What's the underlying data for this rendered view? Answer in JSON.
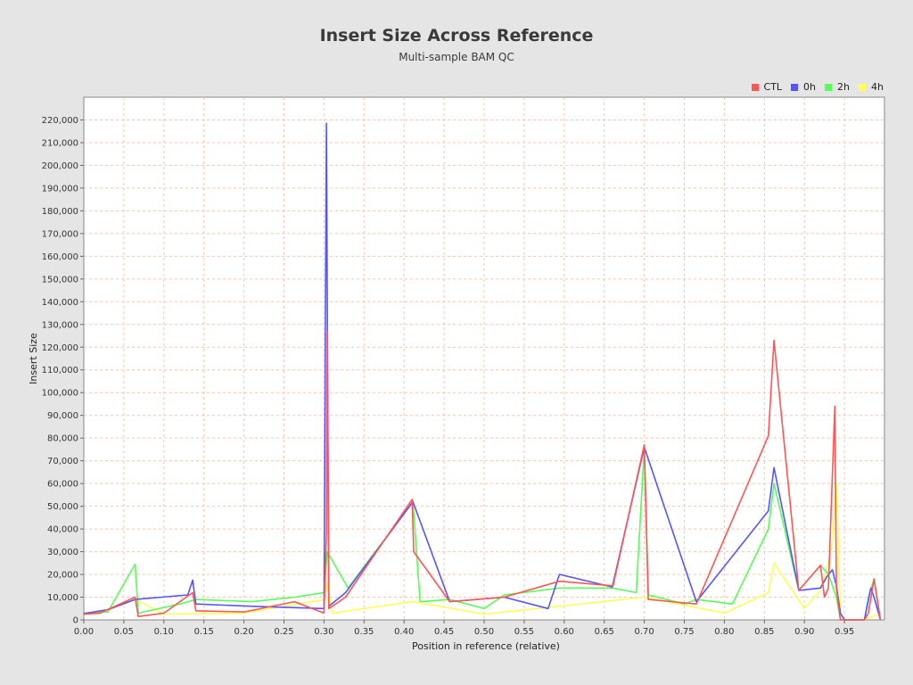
{
  "chart_data": {
    "type": "line",
    "title": "Insert Size Across Reference",
    "subtitle": "Multi-sample BAM QC",
    "xlabel": "Position in reference (relative)",
    "ylabel": "Insert Size",
    "xlim": [
      0,
      1.0
    ],
    "ylim": [
      0,
      230000
    ],
    "xticks": [
      0.0,
      0.05,
      0.1,
      0.15,
      0.2,
      0.25,
      0.3,
      0.35,
      0.4,
      0.45,
      0.5,
      0.55,
      0.6,
      0.65,
      0.7,
      0.75,
      0.8,
      0.85,
      0.9,
      0.95
    ],
    "xtick_labels": [
      "0.00",
      "0.05",
      "0.10",
      "0.15",
      "0.20",
      "0.25",
      "0.30",
      "0.35",
      "0.40",
      "0.45",
      "0.50",
      "0.55",
      "0.60",
      "0.65",
      "0.70",
      "0.75",
      "0.80",
      "0.85",
      "0.90",
      "0.95"
    ],
    "yticks": [
      0,
      10000,
      20000,
      30000,
      40000,
      50000,
      60000,
      70000,
      80000,
      90000,
      100000,
      110000,
      120000,
      130000,
      140000,
      150000,
      160000,
      170000,
      180000,
      190000,
      200000,
      210000,
      220000
    ],
    "ytick_labels": [
      "0",
      "10,000",
      "20,000",
      "30,000",
      "40,000",
      "50,000",
      "60,000",
      "70,000",
      "80,000",
      "90,000",
      "100,000",
      "110,000",
      "120,000",
      "130,000",
      "140,000",
      "150,000",
      "160,000",
      "170,000",
      "180,000",
      "190,000",
      "200,000",
      "210,000",
      "220,000"
    ],
    "grid": true,
    "legend_position": "top-right",
    "series": [
      {
        "name": "4h",
        "color": "#ffff55",
        "points": [
          [
            0.0,
            2500
          ],
          [
            0.02,
            2800
          ],
          [
            0.064,
            9000
          ],
          [
            0.1,
            2500
          ],
          [
            0.2,
            3000
          ],
          [
            0.301,
            9000
          ],
          [
            0.304,
            16000
          ],
          [
            0.31,
            3000
          ],
          [
            0.41,
            8000
          ],
          [
            0.5,
            2500
          ],
          [
            0.594,
            6000
          ],
          [
            0.7,
            10000
          ],
          [
            0.8,
            3000
          ],
          [
            0.855,
            12000
          ],
          [
            0.862,
            25000
          ],
          [
            0.9,
            5000
          ],
          [
            0.92,
            13000
          ],
          [
            0.928,
            22000
          ],
          [
            0.935,
            34000
          ],
          [
            0.94,
            60000
          ],
          [
            0.945,
            3000
          ],
          [
            0.95,
            0
          ],
          [
            0.975,
            0
          ],
          [
            0.98,
            1000
          ],
          [
            0.99,
            2000
          ]
        ]
      },
      {
        "name": "2h",
        "color": "#55ff55",
        "points": [
          [
            0.0,
            3000
          ],
          [
            0.03,
            3500
          ],
          [
            0.064,
            24500
          ],
          [
            0.068,
            3000
          ],
          [
            0.12,
            7000
          ],
          [
            0.14,
            9000
          ],
          [
            0.21,
            8000
          ],
          [
            0.263,
            10000
          ],
          [
            0.3,
            12000
          ],
          [
            0.304,
            30000
          ],
          [
            0.33,
            14000
          ],
          [
            0.411,
            52000
          ],
          [
            0.42,
            8000
          ],
          [
            0.457,
            9000
          ],
          [
            0.5,
            5000
          ],
          [
            0.525,
            11000
          ],
          [
            0.594,
            14000
          ],
          [
            0.66,
            14000
          ],
          [
            0.69,
            12000
          ],
          [
            0.7,
            76000
          ],
          [
            0.705,
            11000
          ],
          [
            0.75,
            7000
          ],
          [
            0.765,
            9000
          ],
          [
            0.81,
            7000
          ],
          [
            0.855,
            40000
          ],
          [
            0.862,
            60000
          ],
          [
            0.893,
            13000
          ],
          [
            0.92,
            24000
          ],
          [
            0.93,
            20000
          ],
          [
            0.94,
            10000
          ],
          [
            0.945,
            0
          ],
          [
            0.975,
            0
          ],
          [
            0.98,
            10000
          ],
          [
            0.987,
            18000
          ],
          [
            0.995,
            0
          ]
        ]
      },
      {
        "name": "0h",
        "color": "#5555ff",
        "points": [
          [
            0.0,
            2800
          ],
          [
            0.03,
            4500
          ],
          [
            0.064,
            9000
          ],
          [
            0.13,
            11000
          ],
          [
            0.136,
            17500
          ],
          [
            0.14,
            7000
          ],
          [
            0.209,
            6000
          ],
          [
            0.3,
            5000
          ],
          [
            0.303,
            218500
          ],
          [
            0.306,
            6000
          ],
          [
            0.327,
            12000
          ],
          [
            0.411,
            52000
          ],
          [
            0.457,
            8000
          ],
          [
            0.525,
            10000
          ],
          [
            0.58,
            5000
          ],
          [
            0.594,
            20000
          ],
          [
            0.66,
            14500
          ],
          [
            0.7,
            76000
          ],
          [
            0.765,
            8000
          ],
          [
            0.855,
            48000
          ],
          [
            0.862,
            67000
          ],
          [
            0.893,
            13000
          ],
          [
            0.92,
            14000
          ],
          [
            0.928,
            19000
          ],
          [
            0.935,
            22000
          ],
          [
            0.94,
            15000
          ],
          [
            0.945,
            3000
          ],
          [
            0.95,
            0
          ],
          [
            0.975,
            0
          ],
          [
            0.983,
            14000
          ],
          [
            0.987,
            10000
          ],
          [
            0.995,
            0
          ]
        ]
      },
      {
        "name": "CTL",
        "color": "#ff5555",
        "points": [
          [
            0.0,
            2500
          ],
          [
            0.02,
            3000
          ],
          [
            0.064,
            10000
          ],
          [
            0.068,
            1500
          ],
          [
            0.1,
            3000
          ],
          [
            0.136,
            12000
          ],
          [
            0.14,
            4000
          ],
          [
            0.2,
            3500
          ],
          [
            0.263,
            8000
          ],
          [
            0.3,
            3000
          ],
          [
            0.303,
            38000
          ],
          [
            0.304,
            127000
          ],
          [
            0.306,
            5000
          ],
          [
            0.327,
            10000
          ],
          [
            0.41,
            53000
          ],
          [
            0.412,
            30000
          ],
          [
            0.457,
            8000
          ],
          [
            0.525,
            10000
          ],
          [
            0.594,
            17000
          ],
          [
            0.661,
            15000
          ],
          [
            0.7,
            77000
          ],
          [
            0.705,
            9000
          ],
          [
            0.765,
            7000
          ],
          [
            0.855,
            81000
          ],
          [
            0.862,
            123000
          ],
          [
            0.893,
            13000
          ],
          [
            0.92,
            24000
          ],
          [
            0.925,
            10000
          ],
          [
            0.93,
            14000
          ],
          [
            0.938,
            94000
          ],
          [
            0.94,
            14000
          ],
          [
            0.945,
            0
          ],
          [
            0.975,
            0
          ],
          [
            0.98,
            3000
          ],
          [
            0.987,
            18000
          ],
          [
            0.995,
            0
          ]
        ]
      }
    ]
  }
}
